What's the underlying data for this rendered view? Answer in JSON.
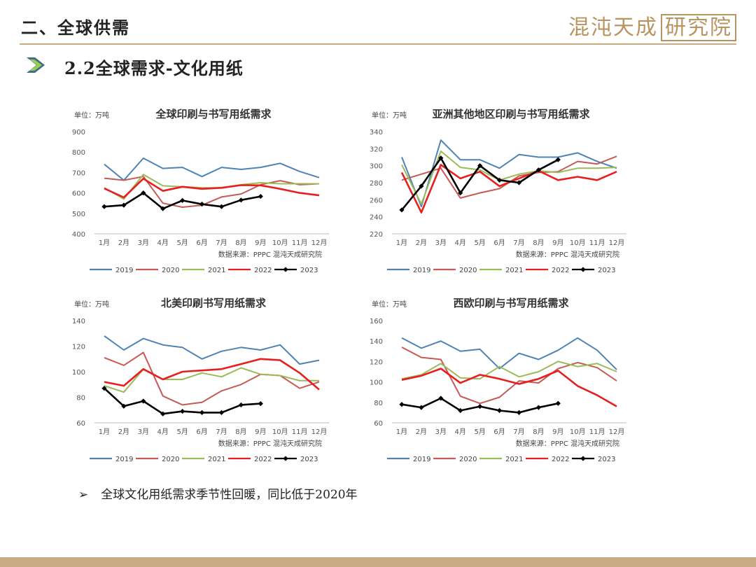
{
  "header": {
    "title": "二、全球供需",
    "logo_text": "混沌天成",
    "logo_box": "研究院"
  },
  "section": {
    "title": "2.2全球需求-文化用纸"
  },
  "bullet": {
    "mark": "➢",
    "text": "全球文化用纸需求季节性回暖，同比低于2020年"
  },
  "colors": {
    "2019": "#4e83b3",
    "2020": "#c65a57",
    "2021": "#9bbb59",
    "2022": "#e81f1f",
    "2023": "#000000",
    "accent": "#c9ab84"
  },
  "chart_data": [
    {
      "type": "line",
      "title": "全球印刷与书写用纸需求",
      "unit": "单位：万吨",
      "source": "数据来源：PPPC 混沌天成研究院",
      "categories": [
        "1月",
        "2月",
        "3月",
        "4月",
        "5月",
        "6月",
        "7月",
        "8月",
        "9月",
        "10月",
        "11月",
        "12月"
      ],
      "ylim": [
        400,
        900
      ],
      "yticks": [
        400,
        500,
        600,
        700,
        800,
        900
      ],
      "series": [
        {
          "name": "2019",
          "values": [
            740,
            662,
            770,
            720,
            725,
            680,
            725,
            715,
            725,
            745,
            705,
            675
          ]
        },
        {
          "name": "2020",
          "values": [
            672,
            662,
            680,
            550,
            530,
            540,
            580,
            595,
            640,
            660,
            640,
            645
          ]
        },
        {
          "name": "2021",
          "values": [
            625,
            570,
            690,
            635,
            630,
            625,
            625,
            640,
            650,
            645,
            645,
            645
          ]
        },
        {
          "name": "2022",
          "values": [
            622,
            578,
            670,
            610,
            630,
            620,
            625,
            638,
            637,
            620,
            600,
            588
          ]
        },
        {
          "name": "2023",
          "values": [
            533,
            540,
            600,
            523,
            563,
            545,
            533,
            565,
            583,
            null,
            null,
            null
          ]
        }
      ]
    },
    {
      "type": "line",
      "title": "亚洲其他地区印刷与书写用纸需求",
      "unit": "单位：万吨",
      "source": "数据来源：PPPC 混沌天成研究院",
      "categories": [
        "1月",
        "2月",
        "3月",
        "4月",
        "5月",
        "6月",
        "7月",
        "8月",
        "9月",
        "10月",
        "11月",
        "12月"
      ],
      "ylim": [
        220,
        340
      ],
      "yticks": [
        220,
        240,
        260,
        280,
        300,
        320,
        340
      ],
      "series": [
        {
          "name": "2019",
          "values": [
            310,
            252,
            330,
            307,
            307,
            297,
            313,
            310,
            310,
            315,
            305,
            297
          ]
        },
        {
          "name": "2020",
          "values": [
            283,
            290,
            297,
            262,
            268,
            273,
            288,
            292,
            293,
            305,
            302,
            311
          ]
        },
        {
          "name": "2021",
          "values": [
            301,
            255,
            317,
            298,
            295,
            283,
            290,
            294,
            292,
            297,
            297,
            298
          ]
        },
        {
          "name": "2022",
          "values": [
            292,
            245,
            301,
            285,
            293,
            276,
            285,
            294,
            283,
            287,
            283,
            293
          ]
        },
        {
          "name": "2023",
          "values": [
            248,
            276,
            309,
            268,
            300,
            283,
            280,
            295,
            307,
            null,
            null,
            null
          ]
        }
      ]
    },
    {
      "type": "line",
      "title": "北美印刷书写用纸需求",
      "unit": "单位：万吨",
      "source": "数据来源：PPPC 混沌天成研究院",
      "categories": [
        "1月",
        "2月",
        "3月",
        "4月",
        "5月",
        "6月",
        "7月",
        "8月",
        "9月",
        "10月",
        "11月",
        "12月"
      ],
      "ylim": [
        60,
        140
      ],
      "yticks": [
        60,
        80,
        100,
        120,
        140
      ],
      "series": [
        {
          "name": "2019",
          "values": [
            128,
            117,
            126,
            121,
            119,
            110,
            116,
            119,
            117,
            121,
            106,
            109
          ]
        },
        {
          "name": "2020",
          "values": [
            111,
            105,
            115,
            81,
            74,
            76,
            85,
            90,
            98,
            97,
            87,
            92
          ]
        },
        {
          "name": "2021",
          "values": [
            89,
            84,
            102,
            94,
            94,
            99,
            96,
            103,
            98,
            97,
            93,
            93
          ]
        },
        {
          "name": "2022",
          "values": [
            92,
            89,
            102,
            94,
            100,
            101,
            102,
            106,
            110,
            109,
            99,
            86
          ]
        },
        {
          "name": "2023",
          "values": [
            87,
            73,
            77,
            67,
            69,
            68,
            68,
            74,
            75,
            null,
            null,
            null
          ]
        }
      ]
    },
    {
      "type": "line",
      "title": "西欧印刷与书写用纸需求",
      "unit": "单位：万吨",
      "source": "数据来源：PPPC 混沌天成研究院",
      "categories": [
        "1月",
        "2月",
        "3月",
        "4月",
        "5月",
        "6月",
        "7月",
        "8月",
        "9月",
        "10月",
        "11月",
        "12月"
      ],
      "ylim": [
        60,
        160
      ],
      "yticks": [
        60,
        80,
        100,
        120,
        140,
        160
      ],
      "series": [
        {
          "name": "2019",
          "values": [
            143,
            133,
            140,
            130,
            132,
            113,
            128,
            122,
            131,
            143,
            131,
            112
          ]
        },
        {
          "name": "2020",
          "values": [
            134,
            124,
            122,
            86,
            79,
            85,
            101,
            99,
            113,
            119,
            114,
            101
          ]
        },
        {
          "name": "2021",
          "values": [
            103,
            107,
            118,
            104,
            103,
            115,
            105,
            110,
            120,
            115,
            118,
            110
          ]
        },
        {
          "name": "2022",
          "values": [
            102,
            106,
            113,
            99,
            107,
            103,
            98,
            103,
            111,
            96,
            87,
            76
          ]
        },
        {
          "name": "2023",
          "values": [
            78,
            75,
            84,
            72,
            76,
            72,
            70,
            75,
            79,
            null,
            null,
            null
          ]
        }
      ]
    }
  ]
}
